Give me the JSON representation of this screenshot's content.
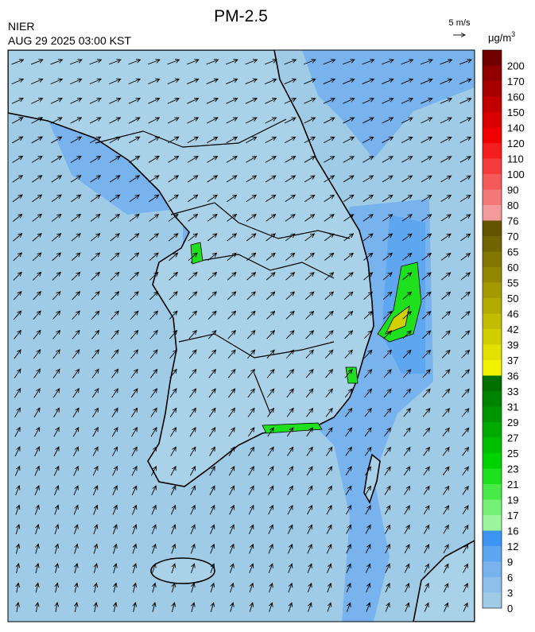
{
  "header": {
    "title": "PM-2.5",
    "source": "NIER",
    "timestamp": "AUG 29 2025 03:00 KST"
  },
  "wind_legend": {
    "label": "5 m/s"
  },
  "colorbar": {
    "unit": "μg/m",
    "unit_exponent": "3",
    "ticks": [
      0,
      3,
      6,
      9,
      12,
      16,
      17,
      19,
      21,
      23,
      25,
      27,
      29,
      31,
      33,
      36,
      37,
      39,
      42,
      46,
      50,
      55,
      60,
      65,
      70,
      76,
      80,
      90,
      100,
      110,
      120,
      140,
      150,
      160,
      170,
      200
    ],
    "colors": [
      "#9fcbe6",
      "#8cbfeb",
      "#78b3ee",
      "#5fa6f0",
      "#3d94f2",
      "#9cf59c",
      "#74f074",
      "#48ea48",
      "#1fe01f",
      "#00d200",
      "#00be00",
      "#00aa00",
      "#009600",
      "#008400",
      "#007000",
      "#f2f200",
      "#e2e000",
      "#d2cf00",
      "#c2bd00",
      "#b2ab00",
      "#a29a00",
      "#928800",
      "#827600",
      "#726400",
      "#625400",
      "#f59a9a",
      "#f57878",
      "#f55a5a",
      "#f53c3c",
      "#f51e1e",
      "#f00000",
      "#d80000",
      "#c00000",
      "#a80000",
      "#900000",
      "#700000"
    ]
  }
}
